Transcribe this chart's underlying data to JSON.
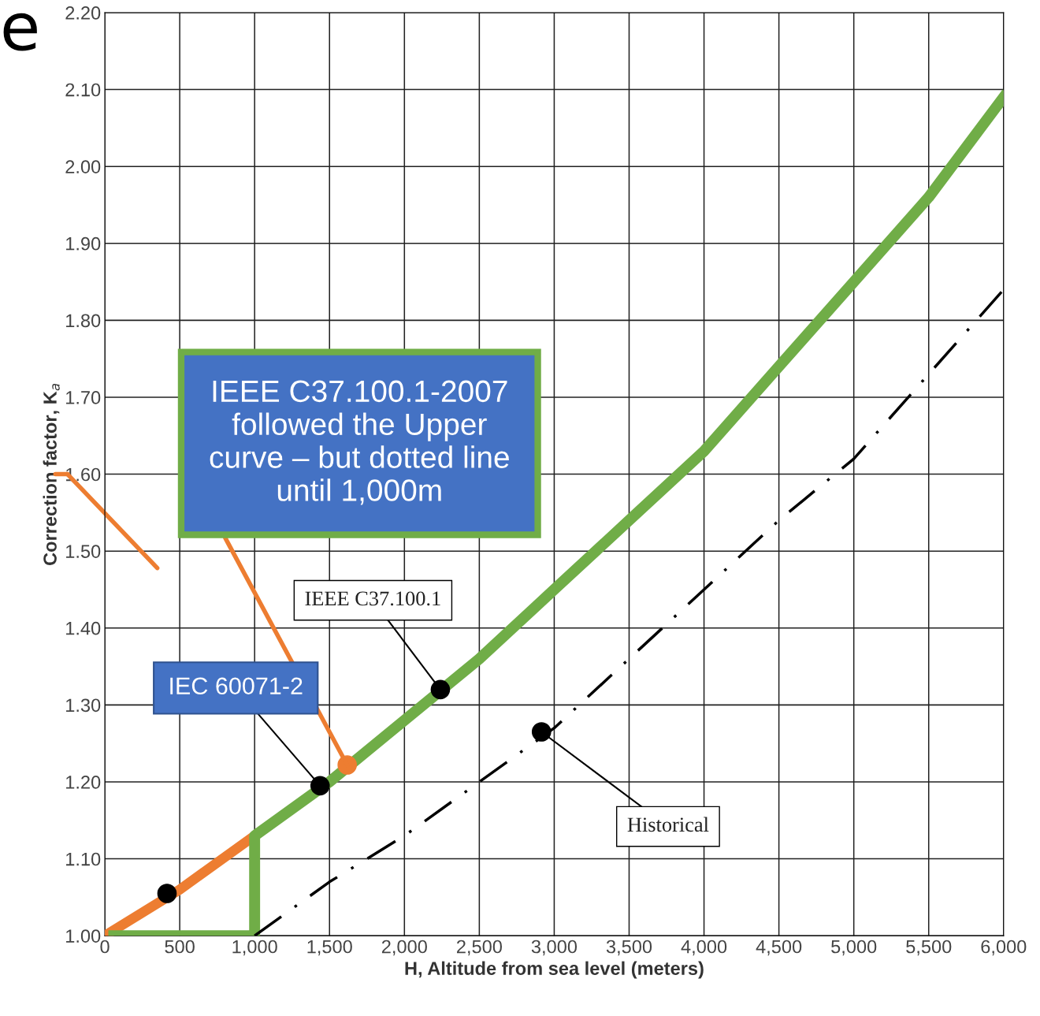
{
  "chart_data": {
    "type": "line",
    "xlabel": "H, Altitude from sea level (meters)",
    "ylabel": "Correction factor, K$_{a}$",
    "xlim": [
      0,
      6000
    ],
    "xticks": [
      0,
      500,
      {
        "value": 1000,
        "label": "1,000"
      },
      {
        "value": 1500,
        "label": "1,500"
      },
      {
        "value": 2000,
        "label": "2,000"
      },
      {
        "value": 2500,
        "label": "2,500"
      },
      {
        "value": 3000,
        "label": "3,000"
      },
      {
        "value": 3500,
        "label": "3,500"
      },
      {
        "value": 4000,
        "label": "4,000"
      },
      {
        "value": 4500,
        "label": "4,500"
      },
      {
        "value": 5000,
        "label": "5,000"
      },
      {
        "value": 5500,
        "label": "5,500"
      },
      {
        "value": 6000,
        "label": "6,000"
      }
    ],
    "ylim": [
      1.0,
      2.2
    ],
    "yticks": [
      {
        "value": 1.0,
        "label": "1.00"
      },
      {
        "value": 1.1,
        "label": "1.10"
      },
      {
        "value": 1.2,
        "label": "1.20"
      },
      {
        "value": 1.3,
        "label": "1.30"
      },
      {
        "value": 1.4,
        "label": "1.40"
      },
      {
        "value": 1.5,
        "label": "1.50"
      },
      {
        "value": 1.6,
        "label": "1.60"
      },
      {
        "value": 1.7,
        "label": "1.70"
      },
      {
        "value": 1.8,
        "label": "1.80"
      },
      {
        "value": 1.9,
        "label": "1.90"
      },
      {
        "value": 2.0,
        "label": "2.00"
      },
      {
        "value": 2.1,
        "label": "2.10"
      },
      {
        "value": 2.2,
        "label": "2.20"
      }
    ],
    "grid": true,
    "series": [
      {
        "color": "#ed7d31",
        "line_style": "solid",
        "x": [
          0,
          500,
          1000
        ],
        "values": [
          1.0,
          1.06,
          1.13
        ]
      },
      {
        "color": "#70ad47",
        "line_style": "solid",
        "x": [
          60,
          1000,
          1000,
          1500,
          2000,
          2500,
          3000,
          3500,
          4000,
          4500,
          5000,
          5500,
          6000
        ],
        "values": [
          1.0,
          1.0,
          1.13,
          1.2,
          1.28,
          1.36,
          1.45,
          1.54,
          1.63,
          1.74,
          1.85,
          1.96,
          2.09
        ]
      },
      {
        "color": "#000000",
        "line_style": "dashdot",
        "x": [
          1000,
          1500,
          2000,
          2500,
          3000,
          3500,
          4000,
          4500,
          5000,
          5500,
          6000
        ],
        "values": [
          1.0,
          1.07,
          1.13,
          1.2,
          1.27,
          1.36,
          1.45,
          1.54,
          1.62,
          1.73,
          1.84
        ]
      },
      {
        "type": "scatter",
        "color": "#000000",
        "marker": "circle",
        "x": [
          415,
          1437,
          2240,
          2915
        ],
        "values": [
          1.055,
          1.195,
          1.32,
          1.265
        ]
      },
      {
        "type": "scatter",
        "color": "#ed7d31",
        "marker": "circle",
        "x": [
          1618
        ],
        "values": [
          1.222
        ]
      }
    ],
    "annotations": [
      {
        "text": "IEEE C37.100.1-2007\nfollowed the Upper\ncurve – but dotted line\nuntil 1,000m",
        "x": 1618,
        "y": 1.222
      },
      {
        "text": "IEC 60071-2",
        "x": 1437,
        "y": 1.195
      },
      {
        "text": "IEEE C37.100.1",
        "x": 2240,
        "y": 1.32
      },
      {
        "text": "Historical",
        "x": 2915,
        "y": 1.265
      },
      "e"
    ]
  }
}
